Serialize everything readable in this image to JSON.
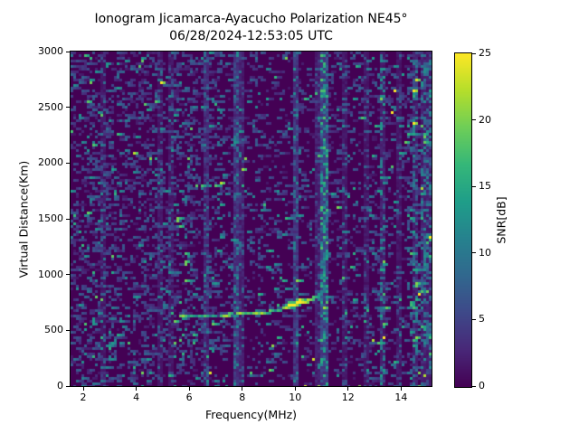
{
  "chart_data": {
    "type": "heatmap",
    "title": "Ionogram Jicamarca-Ayacucho Polarization NE45°",
    "subtitle": "06/28/2024-12:53:05 UTC",
    "xlabel": "Frequency(MHz)",
    "ylabel": "Virtual Distance(Km)",
    "xlim": [
      1.52,
      15.15
    ],
    "ylim": [
      0,
      3000
    ],
    "xticks": [
      2,
      4,
      6,
      8,
      10,
      12,
      14
    ],
    "yticks": [
      0,
      500,
      1000,
      1500,
      2000,
      2500,
      3000
    ],
    "grid": false,
    "colorbar": {
      "label": "SNR[dB]",
      "range": [
        0,
        25
      ],
      "ticks": [
        0,
        5,
        10,
        15,
        20,
        25
      ],
      "colormap": "viridis",
      "position": "right"
    },
    "colormap_stops": [
      "#440154",
      "#482878",
      "#3e4989",
      "#31688e",
      "#26828e",
      "#1f9e89",
      "#35b779",
      "#6ece58",
      "#b5de2b",
      "#fde725"
    ],
    "background_snr": 0,
    "echo_trace": {
      "description": "ionospheric echo trace (f MHz, virtual height km, SNR dB)",
      "points": [
        [
          5.62,
          627,
          15
        ],
        [
          5.72,
          626,
          19
        ],
        [
          5.82,
          628,
          21
        ],
        [
          5.95,
          630,
          13
        ],
        [
          6.1,
          628,
          16
        ],
        [
          6.28,
          631,
          11
        ],
        [
          6.42,
          630,
          16
        ],
        [
          6.55,
          629,
          18
        ],
        [
          6.7,
          631,
          12
        ],
        [
          6.88,
          630,
          15
        ],
        [
          7.18,
          639,
          17
        ],
        [
          7.3,
          640,
          21
        ],
        [
          7.42,
          638,
          22
        ],
        [
          7.55,
          641,
          18
        ],
        [
          7.68,
          640,
          13
        ],
        [
          7.82,
          643,
          20
        ],
        [
          7.95,
          642,
          22
        ],
        [
          8.08,
          645,
          16
        ],
        [
          8.22,
          647,
          18
        ],
        [
          8.4,
          654,
          20
        ],
        [
          8.52,
          657,
          22
        ],
        [
          8.65,
          659,
          17
        ],
        [
          8.78,
          661,
          22
        ],
        [
          8.92,
          663,
          15
        ],
        [
          9.05,
          665,
          19
        ],
        [
          9.2,
          668,
          13
        ],
        [
          9.38,
          684,
          17
        ],
        [
          9.52,
          694,
          20
        ],
        [
          9.66,
          704,
          23
        ],
        [
          9.8,
          714,
          25
        ],
        [
          9.92,
          723,
          25
        ],
        [
          10.02,
          732,
          25
        ],
        [
          10.12,
          740,
          25
        ],
        [
          10.22,
          747,
          25
        ],
        [
          10.32,
          754,
          24
        ],
        [
          10.42,
          762,
          23
        ],
        [
          10.52,
          771,
          22
        ],
        [
          10.62,
          783,
          20
        ],
        [
          10.72,
          796,
          18
        ],
        [
          10.82,
          810,
          16
        ],
        [
          10.92,
          826,
          13
        ],
        [
          11.02,
          843,
          11
        ],
        [
          11.08,
          862,
          10
        ]
      ]
    },
    "rfi_stripes": [
      {
        "f": 2.3,
        "density": 0.1,
        "base": 0,
        "vmin": 3,
        "vmax": 9,
        "w": 0.1
      },
      {
        "f": 2.75,
        "density": 0.14,
        "base": 1.5,
        "vmin": 3,
        "vmax": 9,
        "w": 0.1
      },
      {
        "f": 3.5,
        "density": 0.1,
        "base": 0,
        "vmin": 3,
        "vmax": 8,
        "w": 0.1
      },
      {
        "f": 4.4,
        "density": 0.1,
        "base": 0,
        "vmin": 3,
        "vmax": 8,
        "w": 0.1
      },
      {
        "f": 4.95,
        "density": 0.12,
        "base": 1.5,
        "vmin": 3,
        "vmax": 9,
        "w": 0.1
      },
      {
        "f": 5.35,
        "density": 0.12,
        "base": 1.5,
        "vmin": 3,
        "vmax": 9,
        "w": 0.1
      },
      {
        "f": 6.0,
        "density": 0.1,
        "base": 0,
        "vmin": 3,
        "vmax": 8,
        "w": 0.1
      },
      {
        "f": 6.65,
        "density": 0.22,
        "base": 2.5,
        "vmin": 3,
        "vmax": 10,
        "w": 0.12
      },
      {
        "f": 7.3,
        "density": 0.1,
        "base": 0,
        "vmin": 3,
        "vmax": 8,
        "w": 0.1
      },
      {
        "f": 7.78,
        "density": 0.35,
        "base": 3.5,
        "vmin": 4,
        "vmax": 12,
        "w": 0.12
      },
      {
        "f": 7.95,
        "density": 0.18,
        "base": 2.0,
        "vmin": 3,
        "vmax": 10,
        "w": 0.1
      },
      {
        "f": 8.6,
        "density": 0.1,
        "base": 0,
        "vmin": 3,
        "vmax": 9,
        "w": 0.1
      },
      {
        "f": 10.0,
        "density": 0.3,
        "base": 3.5,
        "vmin": 4,
        "vmax": 12,
        "w": 0.12
      },
      {
        "f": 10.8,
        "density": 0.15,
        "base": 2.0,
        "vmin": 3,
        "vmax": 9,
        "w": 0.1
      },
      {
        "f": 11.1,
        "density": 0.5,
        "base": 4.5,
        "vmin": 5,
        "vmax": 18,
        "w": 0.16
      },
      {
        "f": 11.9,
        "density": 0.15,
        "base": 1.5,
        "vmin": 3,
        "vmax": 9,
        "w": 0.1
      },
      {
        "f": 12.65,
        "density": 0.12,
        "base": 1.5,
        "vmin": 3,
        "vmax": 9,
        "w": 0.1
      },
      {
        "f": 13.35,
        "density": 0.28,
        "base": 2.0,
        "vmin": 6,
        "vmax": 14,
        "w": 0.1
      },
      {
        "f": 13.9,
        "density": 0.12,
        "base": 1.5,
        "vmin": 3,
        "vmax": 9,
        "w": 0.1
      },
      {
        "f": 14.5,
        "density": 0.25,
        "base": 2.0,
        "vmin": 5,
        "vmax": 12,
        "w": 0.1
      },
      {
        "f": 14.8,
        "density": 0.25,
        "base": 2.0,
        "vmin": 5,
        "vmax": 12,
        "w": 0.1
      },
      {
        "f": 15.05,
        "density": 0.25,
        "base": 2.0,
        "vmin": 5,
        "vmax": 12,
        "w": 0.1
      }
    ],
    "noise_regions": [
      {
        "f_range": [
          1.52,
          7.2
        ],
        "density": 0.3,
        "boost": 1.0
      },
      {
        "f_range": [
          7.2,
          12.2
        ],
        "density": 0.17,
        "boost": 1.0
      },
      {
        "f_range": [
          12.2,
          14.2
        ],
        "density": 0.21,
        "boost": 1.1
      },
      {
        "f_range": [
          14.2,
          15.15
        ],
        "density": 0.36,
        "boost": 1.35
      }
    ],
    "noise_values": [
      [
        0.8,
        1.5,
        7.5
      ],
      [
        0.16,
        7.5,
        13.5
      ],
      [
        0.035,
        13.5,
        20.0
      ],
      [
        0.005,
        20.0,
        25.0
      ]
    ],
    "ground_clutter": {
      "height_km": 0,
      "density": 0.1,
      "snr_range": [
        12,
        25
      ]
    }
  }
}
